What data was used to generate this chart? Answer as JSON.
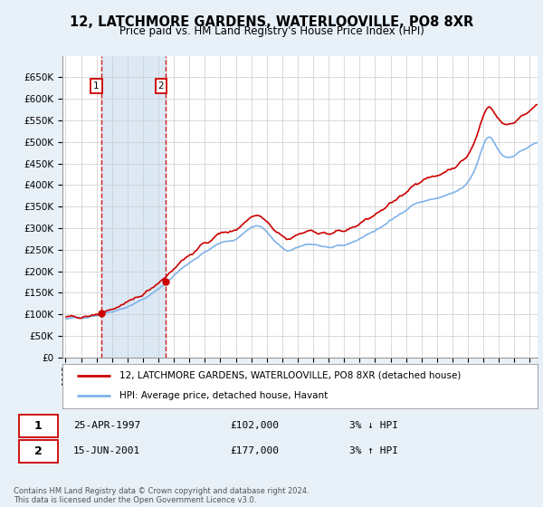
{
  "title": "12, LATCHMORE GARDENS, WATERLOOVILLE, PO8 8XR",
  "subtitle": "Price paid vs. HM Land Registry's House Price Index (HPI)",
  "background_color": "#e8f0f8",
  "plot_bg_color": "#ffffff",
  "shade_color": "#dde8f5",
  "grid_color": "#cccccc",
  "hpi_color": "#7fb3e8",
  "price_color": "#cc0000",
  "marker_color": "#cc0000",
  "sale1_date": "25-APR-1997",
  "sale1_price": 102000,
  "sale1_hpi_diff": "3% ↓ HPI",
  "sale2_date": "15-JUN-2001",
  "sale2_price": 177000,
  "sale2_hpi_diff": "3% ↑ HPI",
  "legend_line1": "12, LATCHMORE GARDENS, WATERLOOVILLE, PO8 8XR (detached house)",
  "legend_line2": "HPI: Average price, detached house, Havant",
  "footer": "Contains HM Land Registry data © Crown copyright and database right 2024.\nThis data is licensed under the Open Government Licence v3.0.",
  "sale1_x": 1997.29,
  "sale2_x": 2001.46,
  "ylim": [
    0,
    700000
  ],
  "xlim_left": 1994.8,
  "xlim_right": 2025.5,
  "yticks": [
    0,
    50000,
    100000,
    150000,
    200000,
    250000,
    300000,
    350000,
    400000,
    450000,
    500000,
    550000,
    600000,
    650000
  ],
  "ytick_labels": [
    "£0",
    "£50K",
    "£100K",
    "£150K",
    "£200K",
    "£250K",
    "£300K",
    "£350K",
    "£400K",
    "£450K",
    "£500K",
    "£550K",
    "£600K",
    "£650K"
  ]
}
